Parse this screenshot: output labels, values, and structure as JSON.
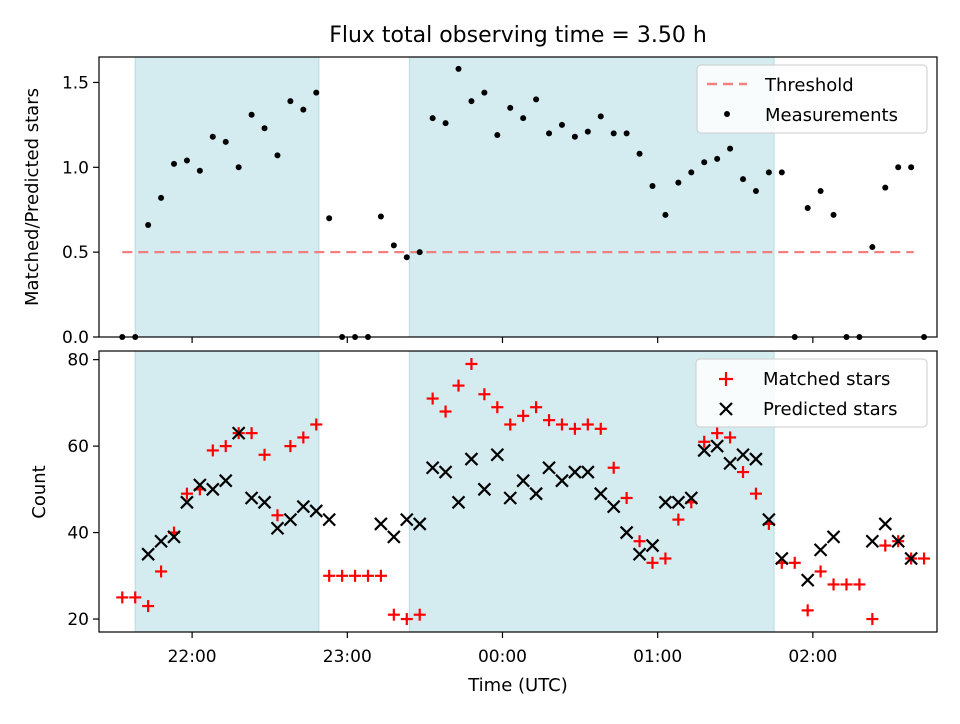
{
  "chart_data": {
    "title": "Flux total observing time = 3.50 h",
    "shaded_periods": [
      [
        "21:38",
        "22:49"
      ],
      [
        "23:24",
        "01:45"
      ]
    ],
    "shade_color": "#d4ebf0",
    "xlabel": "Time (UTC)",
    "x_tick_labels": [
      "22:00",
      "23:00",
      "00:00",
      "01:00",
      "02:00"
    ],
    "x_range": [
      "21:24",
      "02:48"
    ],
    "panels": [
      {
        "type": "scatter",
        "ylabel": "Matched/Predicted stars",
        "ylim": [
          0,
          1.65
        ],
        "y_ticks": [
          "0.0",
          "0.5",
          "1.0",
          "1.5"
        ],
        "legend_position": "upper right",
        "legend": [
          "Threshold",
          "Measurements"
        ],
        "threshold": {
          "name": "Threshold",
          "value": 0.5,
          "x_start": "21:33",
          "x_end": "02:39",
          "color": "#f08080"
        },
        "measurements": {
          "name": "Measurements",
          "color": "#000000",
          "points": [
            [
              "21:33",
              0.0
            ],
            [
              "21:38",
              0.0
            ],
            [
              "21:43",
              0.66
            ],
            [
              "21:48",
              0.82
            ],
            [
              "21:53",
              1.02
            ],
            [
              "21:58",
              1.04
            ],
            [
              "22:03",
              0.98
            ],
            [
              "22:08",
              1.18
            ],
            [
              "22:13",
              1.15
            ],
            [
              "22:18",
              1.0
            ],
            [
              "22:23",
              1.31
            ],
            [
              "22:28",
              1.23
            ],
            [
              "22:33",
              1.07
            ],
            [
              "22:38",
              1.39
            ],
            [
              "22:43",
              1.34
            ],
            [
              "22:48",
              1.44
            ],
            [
              "22:53",
              0.7
            ],
            [
              "22:58",
              0.0
            ],
            [
              "23:03",
              0.0
            ],
            [
              "23:08",
              0.0
            ],
            [
              "23:13",
              0.71
            ],
            [
              "23:18",
              0.54
            ],
            [
              "23:23",
              0.47
            ],
            [
              "23:28",
              0.5
            ],
            [
              "23:33",
              1.29
            ],
            [
              "23:38",
              1.26
            ],
            [
              "23:43",
              1.58
            ],
            [
              "23:48",
              1.39
            ],
            [
              "23:53",
              1.44
            ],
            [
              "23:58",
              1.19
            ],
            [
              "00:03",
              1.35
            ],
            [
              "00:08",
              1.29
            ],
            [
              "00:13",
              1.4
            ],
            [
              "00:18",
              1.2
            ],
            [
              "00:23",
              1.25
            ],
            [
              "00:28",
              1.18
            ],
            [
              "00:33",
              1.21
            ],
            [
              "00:38",
              1.3
            ],
            [
              "00:43",
              1.2
            ],
            [
              "00:48",
              1.2
            ],
            [
              "00:53",
              1.08
            ],
            [
              "00:58",
              0.89
            ],
            [
              "01:03",
              0.72
            ],
            [
              "01:08",
              0.91
            ],
            [
              "01:13",
              0.97
            ],
            [
              "01:18",
              1.03
            ],
            [
              "01:23",
              1.05
            ],
            [
              "01:28",
              1.11
            ],
            [
              "01:33",
              0.93
            ],
            [
              "01:38",
              0.86
            ],
            [
              "01:43",
              0.97
            ],
            [
              "01:48",
              0.97
            ],
            [
              "01:53",
              0.0
            ],
            [
              "01:58",
              0.76
            ],
            [
              "02:03",
              0.86
            ],
            [
              "02:08",
              0.72
            ],
            [
              "02:13",
              0.0
            ],
            [
              "02:18",
              0.0
            ],
            [
              "02:23",
              0.53
            ],
            [
              "02:28",
              0.88
            ],
            [
              "02:33",
              1.0
            ],
            [
              "02:38",
              1.0
            ],
            [
              "02:43",
              0.0
            ]
          ]
        }
      },
      {
        "type": "scatter",
        "ylabel": "Count",
        "ylim": [
          17,
          82
        ],
        "y_ticks": [
          "20",
          "40",
          "60",
          "80"
        ],
        "legend_position": "upper right",
        "legend": [
          "Matched stars",
          "Predicted stars"
        ],
        "series": [
          {
            "name": "Matched stars",
            "marker": "+",
            "color": "#ff0000",
            "points": [
              [
                "21:33",
                25
              ],
              [
                "21:38",
                25
              ],
              [
                "21:43",
                23
              ],
              [
                "21:48",
                31
              ],
              [
                "21:53",
                40
              ],
              [
                "21:58",
                49
              ],
              [
                "22:03",
                50
              ],
              [
                "22:08",
                59
              ],
              [
                "22:13",
                60
              ],
              [
                "22:18",
                63
              ],
              [
                "22:23",
                63
              ],
              [
                "22:28",
                58
              ],
              [
                "22:33",
                44
              ],
              [
                "22:38",
                60
              ],
              [
                "22:43",
                62
              ],
              [
                "22:48",
                65
              ],
              [
                "22:53",
                30
              ],
              [
                "22:58",
                30
              ],
              [
                "23:03",
                30
              ],
              [
                "23:08",
                30
              ],
              [
                "23:13",
                30
              ],
              [
                "23:18",
                21
              ],
              [
                "23:23",
                20
              ],
              [
                "23:28",
                21
              ],
              [
                "23:33",
                71
              ],
              [
                "23:38",
                68
              ],
              [
                "23:43",
                74
              ],
              [
                "23:48",
                79
              ],
              [
                "23:53",
                72
              ],
              [
                "23:58",
                69
              ],
              [
                "00:03",
                65
              ],
              [
                "00:08",
                67
              ],
              [
                "00:13",
                69
              ],
              [
                "00:18",
                66
              ],
              [
                "00:23",
                65
              ],
              [
                "00:28",
                64
              ],
              [
                "00:33",
                65
              ],
              [
                "00:38",
                64
              ],
              [
                "00:43",
                55
              ],
              [
                "00:48",
                48
              ],
              [
                "00:53",
                38
              ],
              [
                "00:58",
                33
              ],
              [
                "01:03",
                34
              ],
              [
                "01:08",
                43
              ],
              [
                "01:13",
                47
              ],
              [
                "01:18",
                61
              ],
              [
                "01:23",
                63
              ],
              [
                "01:28",
                62
              ],
              [
                "01:33",
                54
              ],
              [
                "01:38",
                49
              ],
              [
                "01:43",
                42
              ],
              [
                "01:48",
                33
              ],
              [
                "01:53",
                33
              ],
              [
                "01:58",
                22
              ],
              [
                "02:03",
                31
              ],
              [
                "02:08",
                28
              ],
              [
                "02:13",
                28
              ],
              [
                "02:18",
                28
              ],
              [
                "02:23",
                20
              ],
              [
                "02:28",
                37
              ],
              [
                "02:33",
                38
              ],
              [
                "02:38",
                34
              ],
              [
                "02:43",
                34
              ]
            ]
          },
          {
            "name": "Predicted stars",
            "marker": "x",
            "color": "#000000",
            "points": [
              [
                "21:43",
                35
              ],
              [
                "21:48",
                38
              ],
              [
                "21:53",
                39
              ],
              [
                "21:58",
                47
              ],
              [
                "22:03",
                51
              ],
              [
                "22:08",
                50
              ],
              [
                "22:13",
                52
              ],
              [
                "22:18",
                63
              ],
              [
                "22:23",
                48
              ],
              [
                "22:28",
                47
              ],
              [
                "22:33",
                41
              ],
              [
                "22:38",
                43
              ],
              [
                "22:43",
                46
              ],
              [
                "22:48",
                45
              ],
              [
                "22:53",
                43
              ],
              [
                "23:13",
                42
              ],
              [
                "23:18",
                39
              ],
              [
                "23:23",
                43
              ],
              [
                "23:28",
                42
              ],
              [
                "23:33",
                55
              ],
              [
                "23:38",
                54
              ],
              [
                "23:43",
                47
              ],
              [
                "23:48",
                57
              ],
              [
                "23:53",
                50
              ],
              [
                "23:58",
                58
              ],
              [
                "00:03",
                48
              ],
              [
                "00:08",
                52
              ],
              [
                "00:13",
                49
              ],
              [
                "00:18",
                55
              ],
              [
                "00:23",
                52
              ],
              [
                "00:28",
                54
              ],
              [
                "00:33",
                54
              ],
              [
                "00:38",
                49
              ],
              [
                "00:43",
                46
              ],
              [
                "00:48",
                40
              ],
              [
                "00:53",
                35
              ],
              [
                "00:58",
                37
              ],
              [
                "01:03",
                47
              ],
              [
                "01:08",
                47
              ],
              [
                "01:13",
                48
              ],
              [
                "01:18",
                59
              ],
              [
                "01:23",
                60
              ],
              [
                "01:28",
                56
              ],
              [
                "01:33",
                58
              ],
              [
                "01:38",
                57
              ],
              [
                "01:43",
                43
              ],
              [
                "01:48",
                34
              ],
              [
                "01:58",
                29
              ],
              [
                "02:03",
                36
              ],
              [
                "02:08",
                39
              ],
              [
                "02:23",
                38
              ],
              [
                "02:28",
                42
              ],
              [
                "02:33",
                38
              ],
              [
                "02:38",
                34
              ]
            ]
          }
        ]
      }
    ]
  }
}
